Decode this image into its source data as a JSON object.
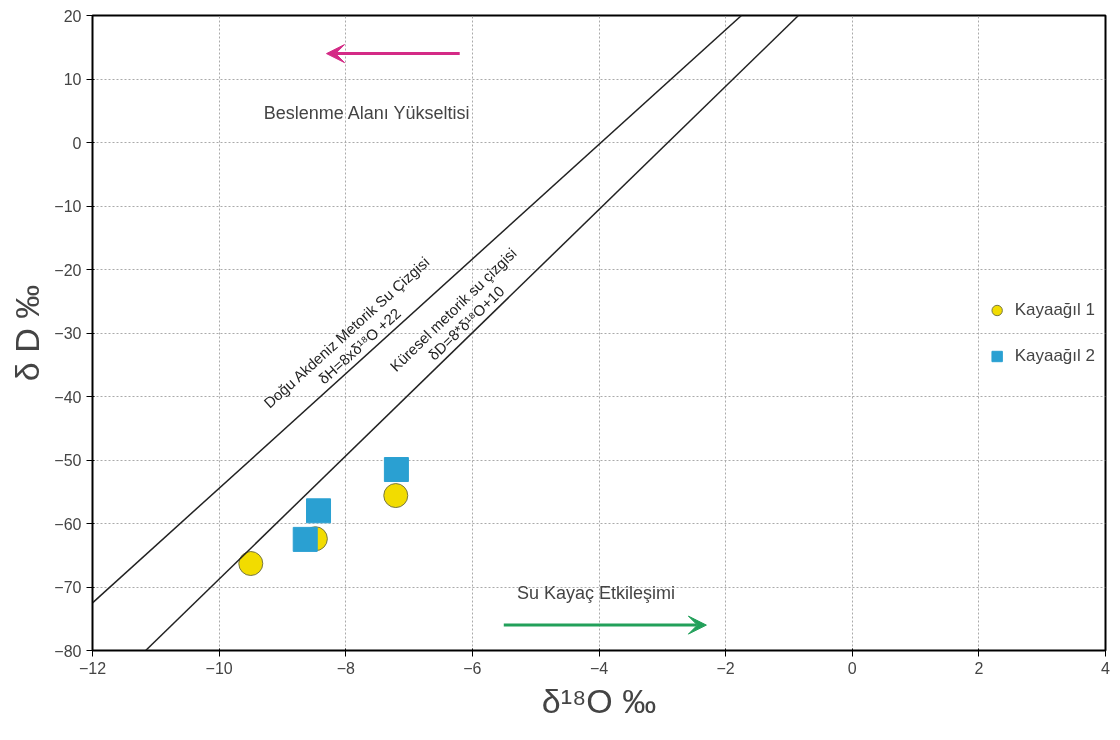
{
  "chart_data": {
    "type": "scatter",
    "xlabel": "δ¹⁸O ‰",
    "ylabel": "δ D ‰",
    "xlim": [
      -12,
      4
    ],
    "ylim": [
      -80,
      20
    ],
    "xticks": [
      -12,
      -10,
      -8,
      -6,
      -4,
      -2,
      0,
      2,
      4
    ],
    "yticks": [
      -80,
      -70,
      -60,
      -50,
      -40,
      -30,
      -20,
      -10,
      0,
      10,
      20
    ],
    "grid": true,
    "legend": "right",
    "series": [
      {
        "name": "Kayaağıl 1",
        "marker": "circle",
        "color": "#f2dc00",
        "x": [
          -9.5,
          -8.48,
          -7.21
        ],
        "values": [
          -66.3,
          -62.4,
          -55.6
        ]
      },
      {
        "name": "Kayaağıl 2",
        "marker": "square",
        "color": "#2aa0d2",
        "x": [
          -8.64,
          -8.43,
          -7.2
        ],
        "values": [
          -62.5,
          -58.0,
          -51.5
        ]
      },
      {
        "name": "Doğu Akdeniz Metorik Su Çizgisi\nδH=8xδ¹⁸O +22",
        "type": "line",
        "color": "#222222",
        "x": [
          -12,
          -1.75
        ],
        "values": [
          -72.5,
          20
        ]
      },
      {
        "name": "Küresel metorik su çizgisi\nδD=8*δ¹⁸O+10",
        "type": "line",
        "color": "#222222",
        "x": [
          -11.16,
          -0.85
        ],
        "values": [
          -80,
          20
        ]
      }
    ],
    "annotations": [
      "Beslenme Alanı Yükseltisi",
      "Su Kayaç Etkileşimi"
    ]
  }
}
